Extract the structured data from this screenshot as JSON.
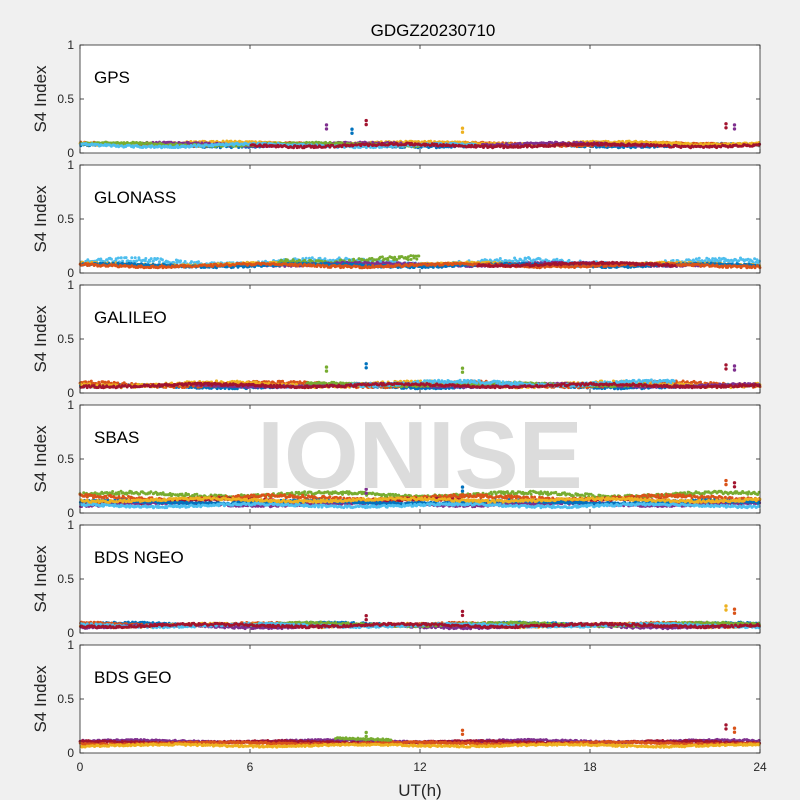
{
  "chart_data": {
    "type": "scatter",
    "title": "GDGZ20230710",
    "xlabel": "UT(h)",
    "ylabel": "S4 Index",
    "xlim": [
      0,
      24
    ],
    "ylim": [
      0,
      1
    ],
    "xticks": [
      "0",
      "6",
      "12",
      "18",
      "24"
    ],
    "yticks": [
      "0",
      "0.5",
      "1"
    ],
    "watermark": "IONISE",
    "series_colors": [
      "#0072bd",
      "#d95319",
      "#edb120",
      "#7e2f8e",
      "#77ac30",
      "#4dbeee",
      "#a2142f"
    ],
    "panels": [
      {
        "name": "GPS",
        "typical_s4_range": [
          0.03,
          0.12
        ],
        "tracks": [
          {
            "color": "#0072bd",
            "t_start": 0.0,
            "t_end": 24.0,
            "s4_base": 0.07,
            "s4_spread": 0.02
          },
          {
            "color": "#d95319",
            "t_start": 0.0,
            "t_end": 24.0,
            "s4_base": 0.08,
            "s4_spread": 0.02
          },
          {
            "color": "#edb120",
            "t_start": 0.0,
            "t_end": 24.0,
            "s4_base": 0.09,
            "s4_spread": 0.02
          },
          {
            "color": "#7e2f8e",
            "t_start": 2.0,
            "t_end": 20.0,
            "s4_base": 0.08,
            "s4_spread": 0.02
          },
          {
            "color": "#77ac30",
            "t_start": 0.0,
            "t_end": 12.0,
            "s4_base": 0.08,
            "s4_spread": 0.02
          },
          {
            "color": "#4dbeee",
            "t_start": 0.0,
            "t_end": 14.0,
            "s4_base": 0.07,
            "s4_spread": 0.02
          },
          {
            "color": "#a2142f",
            "t_start": 6.0,
            "t_end": 24.0,
            "s4_base": 0.07,
            "s4_spread": 0.02
          }
        ],
        "outliers": [
          {
            "t": 8.7,
            "s4": 0.26,
            "color": "#7e2f8e"
          },
          {
            "t": 9.6,
            "s4": 0.22,
            "color": "#0072bd"
          },
          {
            "t": 10.1,
            "s4": 0.3,
            "color": "#a2142f"
          },
          {
            "t": 13.5,
            "s4": 0.23,
            "color": "#edb120"
          },
          {
            "t": 22.8,
            "s4": 0.27,
            "color": "#a2142f"
          },
          {
            "t": 23.1,
            "s4": 0.26,
            "color": "#7e2f8e"
          }
        ]
      },
      {
        "name": "GLONASS",
        "typical_s4_range": [
          0.04,
          0.18
        ],
        "tracks": [
          {
            "color": "#4dbeee",
            "t_start": 0.0,
            "t_end": 24.0,
            "s4_base": 0.1,
            "s4_spread": 0.04
          },
          {
            "color": "#edb120",
            "t_start": 0.0,
            "t_end": 24.0,
            "s4_base": 0.08,
            "s4_spread": 0.02
          },
          {
            "color": "#77ac30",
            "t_start": 7.0,
            "t_end": 12.0,
            "s4_base": 0.12,
            "s4_spread": 0.04
          },
          {
            "color": "#7e2f8e",
            "t_start": 6.5,
            "t_end": 22.0,
            "s4_base": 0.08,
            "s4_spread": 0.02
          },
          {
            "color": "#0072bd",
            "t_start": 0.0,
            "t_end": 24.0,
            "s4_base": 0.07,
            "s4_spread": 0.02
          },
          {
            "color": "#d95319",
            "t_start": 0.0,
            "t_end": 24.0,
            "s4_base": 0.07,
            "s4_spread": 0.02
          },
          {
            "color": "#a2142f",
            "t_start": 14.0,
            "t_end": 21.0,
            "s4_base": 0.08,
            "s4_spread": 0.02
          }
        ],
        "outliers": []
      },
      {
        "name": "GALILEO",
        "typical_s4_range": [
          0.04,
          0.16
        ],
        "tracks": [
          {
            "color": "#0072bd",
            "t_start": 0.0,
            "t_end": 24.0,
            "s4_base": 0.06,
            "s4_spread": 0.02
          },
          {
            "color": "#d95319",
            "t_start": 0.0,
            "t_end": 24.0,
            "s4_base": 0.08,
            "s4_spread": 0.03
          },
          {
            "color": "#edb120",
            "t_start": 0.0,
            "t_end": 24.0,
            "s4_base": 0.08,
            "s4_spread": 0.03
          },
          {
            "color": "#7e2f8e",
            "t_start": 4.0,
            "t_end": 24.0,
            "s4_base": 0.07,
            "s4_spread": 0.02
          },
          {
            "color": "#77ac30",
            "t_start": 8.0,
            "t_end": 20.0,
            "s4_base": 0.08,
            "s4_spread": 0.02
          },
          {
            "color": "#4dbeee",
            "t_start": 9.5,
            "t_end": 21.0,
            "s4_base": 0.09,
            "s4_spread": 0.03
          },
          {
            "color": "#a2142f",
            "t_start": 0.0,
            "t_end": 24.0,
            "s4_base": 0.07,
            "s4_spread": 0.02
          }
        ],
        "outliers": [
          {
            "t": 8.7,
            "s4": 0.24,
            "color": "#77ac30"
          },
          {
            "t": 10.1,
            "s4": 0.27,
            "color": "#0072bd"
          },
          {
            "t": 13.5,
            "s4": 0.23,
            "color": "#77ac30"
          },
          {
            "t": 22.8,
            "s4": 0.26,
            "color": "#a2142f"
          },
          {
            "t": 23.1,
            "s4": 0.25,
            "color": "#7e2f8e"
          }
        ]
      },
      {
        "name": "SBAS",
        "typical_s4_range": [
          0.05,
          0.25
        ],
        "tracks": [
          {
            "color": "#77ac30",
            "t_start": 0.0,
            "t_end": 24.0,
            "s4_base": 0.17,
            "s4_spread": 0.03
          },
          {
            "color": "#d95319",
            "t_start": 0.0,
            "t_end": 24.0,
            "s4_base": 0.14,
            "s4_spread": 0.03
          },
          {
            "color": "#a2142f",
            "t_start": 0.0,
            "t_end": 24.0,
            "s4_base": 0.11,
            "s4_spread": 0.03
          },
          {
            "color": "#7e2f8e",
            "t_start": 0.0,
            "t_end": 24.0,
            "s4_base": 0.08,
            "s4_spread": 0.02
          },
          {
            "color": "#0072bd",
            "t_start": 0.0,
            "t_end": 24.0,
            "s4_base": 0.1,
            "s4_spread": 0.02
          },
          {
            "color": "#4dbeee",
            "t_start": 0.0,
            "t_end": 24.0,
            "s4_base": 0.07,
            "s4_spread": 0.02
          },
          {
            "color": "#edb120",
            "t_start": 0.0,
            "t_end": 24.0,
            "s4_base": 0.12,
            "s4_spread": 0.02
          }
        ],
        "outliers": [
          {
            "t": 10.1,
            "s4": 0.22,
            "color": "#7e2f8e"
          },
          {
            "t": 13.5,
            "s4": 0.24,
            "color": "#0072bd"
          },
          {
            "t": 22.8,
            "s4": 0.3,
            "color": "#d95319"
          },
          {
            "t": 23.1,
            "s4": 0.28,
            "color": "#a2142f"
          }
        ]
      },
      {
        "name": "BDS NGEO",
        "typical_s4_range": [
          0.03,
          0.14
        ],
        "tracks": [
          {
            "color": "#0072bd",
            "t_start": 0.0,
            "t_end": 24.0,
            "s4_base": 0.08,
            "s4_spread": 0.02
          },
          {
            "color": "#d95319",
            "t_start": 0.0,
            "t_end": 24.0,
            "s4_base": 0.08,
            "s4_spread": 0.02
          },
          {
            "color": "#edb120",
            "t_start": 0.0,
            "t_end": 24.0,
            "s4_base": 0.07,
            "s4_spread": 0.02
          },
          {
            "color": "#7e2f8e",
            "t_start": 0.0,
            "t_end": 24.0,
            "s4_base": 0.06,
            "s4_spread": 0.02
          },
          {
            "color": "#77ac30",
            "t_start": 6.0,
            "t_end": 24.0,
            "s4_base": 0.08,
            "s4_spread": 0.02
          },
          {
            "color": "#4dbeee",
            "t_start": 0.0,
            "t_end": 24.0,
            "s4_base": 0.07,
            "s4_spread": 0.02
          },
          {
            "color": "#a2142f",
            "t_start": 0.0,
            "t_end": 24.0,
            "s4_base": 0.07,
            "s4_spread": 0.02
          }
        ],
        "outliers": [
          {
            "t": 10.1,
            "s4": 0.16,
            "color": "#a2142f"
          },
          {
            "t": 13.5,
            "s4": 0.2,
            "color": "#a2142f"
          },
          {
            "t": 22.8,
            "s4": 0.25,
            "color": "#edb120"
          },
          {
            "t": 23.1,
            "s4": 0.22,
            "color": "#d95319"
          }
        ]
      },
      {
        "name": "BDS GEO",
        "typical_s4_range": [
          0.06,
          0.14
        ],
        "tracks": [
          {
            "color": "#7e2f8e",
            "t_start": 0.0,
            "t_end": 24.0,
            "s4_base": 0.11,
            "s4_spread": 0.015
          },
          {
            "color": "#a2142f",
            "t_start": 0.0,
            "t_end": 24.0,
            "s4_base": 0.1,
            "s4_spread": 0.015
          },
          {
            "color": "#d95319",
            "t_start": 0.0,
            "t_end": 24.0,
            "s4_base": 0.09,
            "s4_spread": 0.015
          },
          {
            "color": "#edb120",
            "t_start": 0.0,
            "t_end": 24.0,
            "s4_base": 0.07,
            "s4_spread": 0.015
          },
          {
            "color": "#77ac30",
            "t_start": 9.0,
            "t_end": 11.0,
            "s4_base": 0.13,
            "s4_spread": 0.015
          }
        ],
        "outliers": [
          {
            "t": 10.1,
            "s4": 0.19,
            "color": "#77ac30"
          },
          {
            "t": 13.5,
            "s4": 0.21,
            "color": "#d95319"
          },
          {
            "t": 22.8,
            "s4": 0.26,
            "color": "#a2142f"
          },
          {
            "t": 23.1,
            "s4": 0.23,
            "color": "#d95319"
          }
        ]
      }
    ]
  }
}
